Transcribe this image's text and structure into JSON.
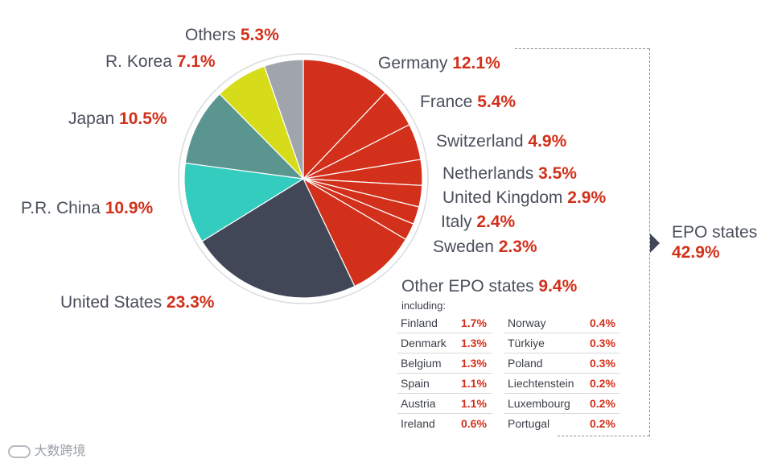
{
  "chart_data": {
    "type": "pie",
    "slices": [
      {
        "label": "Germany",
        "value": 12.1,
        "color": "#d2301a"
      },
      {
        "label": "France",
        "value": 5.4,
        "color": "#d2301a"
      },
      {
        "label": "Switzerland",
        "value": 4.9,
        "color": "#d2301a"
      },
      {
        "label": "Netherlands",
        "value": 3.5,
        "color": "#d2301a"
      },
      {
        "label": "United Kingdom",
        "value": 2.9,
        "color": "#d2301a"
      },
      {
        "label": "Italy",
        "value": 2.4,
        "color": "#d2301a"
      },
      {
        "label": "Sweden",
        "value": 2.3,
        "color": "#d2301a"
      },
      {
        "label": "Other EPO states",
        "value": 9.4,
        "color": "#d2301a"
      },
      {
        "label": "United States",
        "value": 23.3,
        "color": "#414756"
      },
      {
        "label": "P.R. China",
        "value": 10.9,
        "color": "#33ccbf"
      },
      {
        "label": "Japan",
        "value": 10.5,
        "color": "#5a958f"
      },
      {
        "label": "R. Korea",
        "value": 7.1,
        "color": "#d6dc1a"
      },
      {
        "label": "Others",
        "value": 5.3,
        "color": "#a0a5ad"
      }
    ],
    "labels": {
      "others": {
        "name": "Others",
        "pct": "5.3%"
      },
      "korea": {
        "name": "R. Korea",
        "pct": "7.1%"
      },
      "japan": {
        "name": "Japan",
        "pct": "10.5%"
      },
      "china": {
        "name": "P.R. China",
        "pct": "10.9%"
      },
      "us": {
        "name": "United States",
        "pct": "23.3%"
      },
      "germany": {
        "name": "Germany",
        "pct": "12.1%"
      },
      "france": {
        "name": "France",
        "pct": "5.4%"
      },
      "switzerland": {
        "name": "Switzerland",
        "pct": "4.9%"
      },
      "netherlands": {
        "name": "Netherlands",
        "pct": "3.5%"
      },
      "uk": {
        "name": "United Kingdom",
        "pct": "2.9%"
      },
      "italy": {
        "name": "Italy",
        "pct": "2.4%"
      },
      "sweden": {
        "name": "Sweden",
        "pct": "2.3%"
      },
      "other_epo": {
        "name": "Other EPO states",
        "pct": "9.4%"
      }
    },
    "including_label": "including:",
    "breakdown_left": [
      {
        "name": "Finland",
        "pct": "1.7%"
      },
      {
        "name": "Denmark",
        "pct": "1.3%"
      },
      {
        "name": "Belgium",
        "pct": "1.3%"
      },
      {
        "name": "Spain",
        "pct": "1.1%"
      },
      {
        "name": "Austria",
        "pct": "1.1%"
      },
      {
        "name": "Ireland",
        "pct": "0.6%"
      }
    ],
    "breakdown_right": [
      {
        "name": "Norway",
        "pct": "0.4%"
      },
      {
        "name": "Türkiye",
        "pct": "0.3%"
      },
      {
        "name": "Poland",
        "pct": "0.3%"
      },
      {
        "name": "Liechtenstein",
        "pct": "0.2%"
      },
      {
        "name": "Luxembourg",
        "pct": "0.2%"
      },
      {
        "name": "Portugal",
        "pct": "0.2%"
      }
    ],
    "epo_total": {
      "name": "EPO states",
      "pct": "42.9%"
    }
  },
  "watermark": "大数跨境"
}
